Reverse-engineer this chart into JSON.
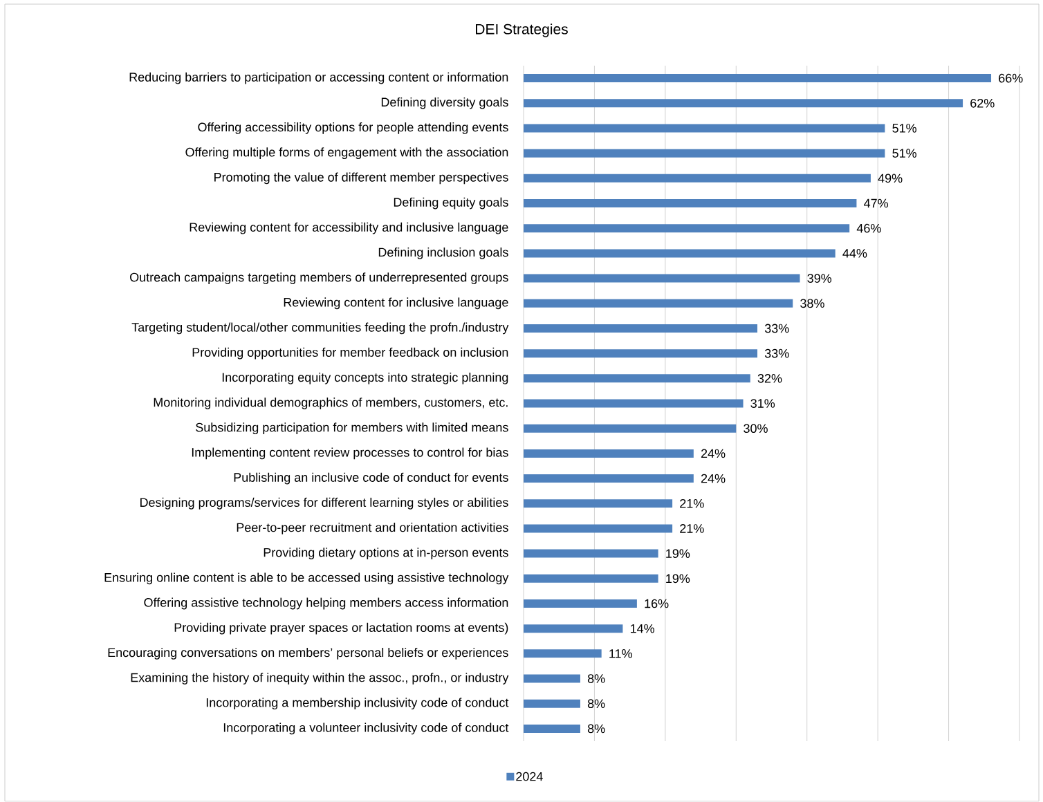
{
  "chart_data": {
    "type": "bar",
    "orientation": "horizontal",
    "title": "DEI Strategies",
    "categories": [
      "Reducing barriers to participation or accessing content or information",
      "Defining diversity goals",
      "Offering accessibility options for people attending events",
      "Offering multiple forms of engagement with the association",
      "Promoting the value of different member perspectives",
      "Defining equity goals",
      "Reviewing content for accessibility and inclusive language",
      "Defining inclusion goals",
      "Outreach campaigns targeting members of underrepresented groups",
      "Reviewing content for inclusive language",
      "Targeting student/local/other communities feeding the profn./industry",
      "Providing opportunities for member feedback on inclusion",
      "Incorporating equity concepts into strategic planning",
      "Monitoring individual demographics of members, customers, etc.",
      "Subsidizing participation for members with limited means",
      "Implementing content review processes to control for bias",
      "Publishing an inclusive code of conduct for events",
      "Designing programs/services for different learning styles or abilities",
      "Peer-to-peer recruitment and orientation activities",
      "Providing dietary options at in-person events",
      "Ensuring online content is able to be accessed using assistive technology",
      "Offering assistive technology helping members access information",
      "Providing private prayer spaces or lactation rooms at events)",
      "Encouraging conversations on members’ personal beliefs or experiences",
      "Examining the history of inequity within the assoc., profn., or industry",
      "Incorporating a membership inclusivity code of conduct",
      "Incorporating a volunteer inclusivity code of conduct"
    ],
    "series": [
      {
        "name": "2024",
        "color": "#4f81bd",
        "values": [
          66,
          62,
          51,
          51,
          49,
          47,
          46,
          44,
          39,
          38,
          33,
          33,
          32,
          31,
          30,
          24,
          24,
          21,
          21,
          19,
          19,
          16,
          14,
          11,
          8,
          8,
          8
        ],
        "value_labels": [
          "66%",
          "62%",
          "51%",
          "51%",
          "49%",
          "47%",
          "46%",
          "44%",
          "39%",
          "38%",
          "33%",
          "33%",
          "32%",
          "31%",
          "30%",
          "24%",
          "24%",
          "21%",
          "21%",
          "19%",
          "19%",
          "16%",
          "14%",
          "11%",
          "8%",
          "8%",
          "8%"
        ]
      }
    ],
    "xlim": [
      0,
      70
    ],
    "xticks": [
      {
        "value": 0,
        "label": null
      },
      {
        "value": 10,
        "label": null
      },
      {
        "value": 20,
        "label": null
      },
      {
        "value": 30,
        "label": null
      },
      {
        "value": 40,
        "label": null
      },
      {
        "value": 50,
        "label": null
      },
      {
        "value": 60,
        "label": null
      },
      {
        "value": 70,
        "label": null
      }
    ],
    "tick_labels": "y",
    "grid": "x",
    "legend": "bottom"
  }
}
